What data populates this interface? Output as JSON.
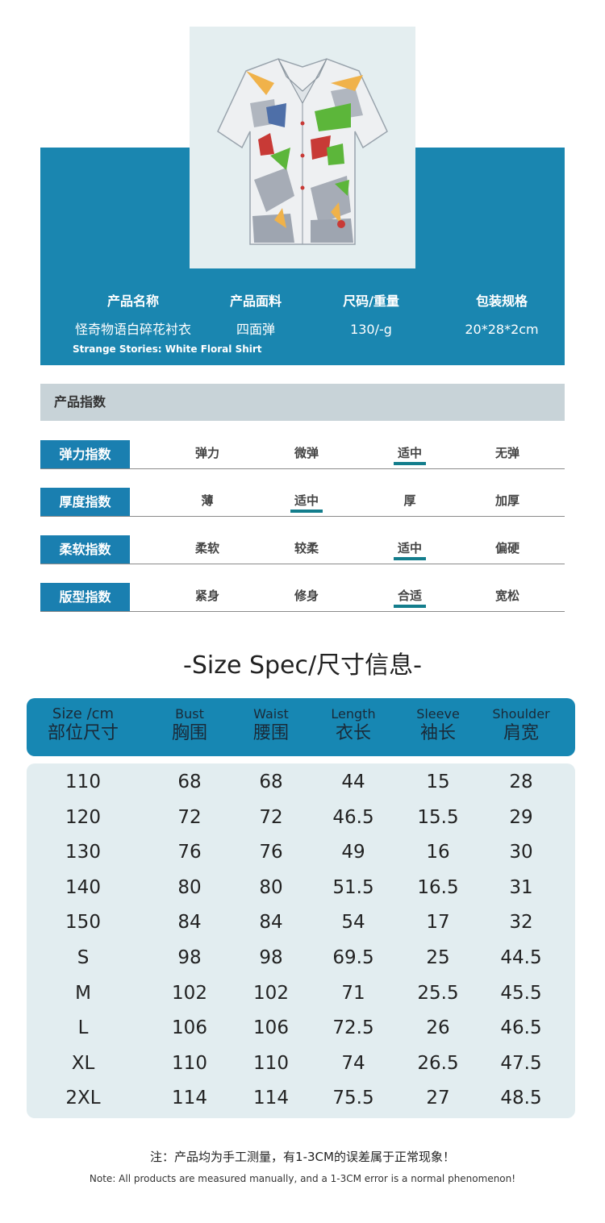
{
  "product": {
    "headers": [
      "产品名称",
      "产品面料",
      "尺码/重量",
      "包装规格"
    ],
    "name_cn": "怪奇物语白碎花衬衣",
    "name_en": "Strange Stories: White Floral Shirt",
    "fabric": "四面弹",
    "size_weight": "130/-g",
    "package": "20*28*2cm"
  },
  "index": {
    "title": "产品指数",
    "rows": [
      {
        "label": "弹力指数",
        "options": [
          "弹力",
          "微弹",
          "适中",
          "无弹"
        ],
        "selected": 2
      },
      {
        "label": "厚度指数",
        "options": [
          "薄",
          "适中",
          "厚",
          "加厚"
        ],
        "selected": 1
      },
      {
        "label": "柔软指数",
        "options": [
          "柔软",
          "较柔",
          "适中",
          "偏硬"
        ],
        "selected": 2
      },
      {
        "label": "版型指数",
        "options": [
          "紧身",
          "修身",
          "合适",
          "宽松"
        ],
        "selected": 2
      }
    ],
    "marker_color": "#137d8c"
  },
  "size_spec": {
    "title": "-Size Spec/尺寸信息-",
    "columns": [
      {
        "en": "Size /cm",
        "cn": "部位尺寸"
      },
      {
        "en": "Bust",
        "cn": "胸围"
      },
      {
        "en": "Waist",
        "cn": "腰围"
      },
      {
        "en": "Length",
        "cn": "衣长"
      },
      {
        "en": "Sleeve",
        "cn": "袖长"
      },
      {
        "en": "Shoulder",
        "cn": "肩宽"
      }
    ],
    "rows": [
      [
        "110",
        "68",
        "68",
        "44",
        "15",
        "28"
      ],
      [
        "120",
        "72",
        "72",
        "46.5",
        "15.5",
        "29"
      ],
      [
        "130",
        "76",
        "76",
        "49",
        "16",
        "30"
      ],
      [
        "140",
        "80",
        "80",
        "51.5",
        "16.5",
        "31"
      ],
      [
        "150",
        "84",
        "84",
        "54",
        "17",
        "32"
      ],
      [
        "S",
        "98",
        "98",
        "69.5",
        "25",
        "44.5"
      ],
      [
        "M",
        "102",
        "102",
        "71",
        "25.5",
        "45.5"
      ],
      [
        "L",
        "106",
        "106",
        "72.5",
        "26",
        "46.5"
      ],
      [
        "XL",
        "110",
        "110",
        "74",
        "26.5",
        "47.5"
      ],
      [
        "2XL",
        "114",
        "114",
        "75.5",
        "27",
        "48.5"
      ]
    ]
  },
  "notes": {
    "cn": "注：产品均为手工测量，有1-3CM的误差属于正常现象！",
    "en": "Note: All products are measured manually, and a 1-3CM error is a normal phenomenon!"
  },
  "colors": {
    "band": "#1a86b0",
    "tag": "#1a7fb0",
    "size_head": "#1787b3",
    "size_body": "#e2edf0"
  }
}
